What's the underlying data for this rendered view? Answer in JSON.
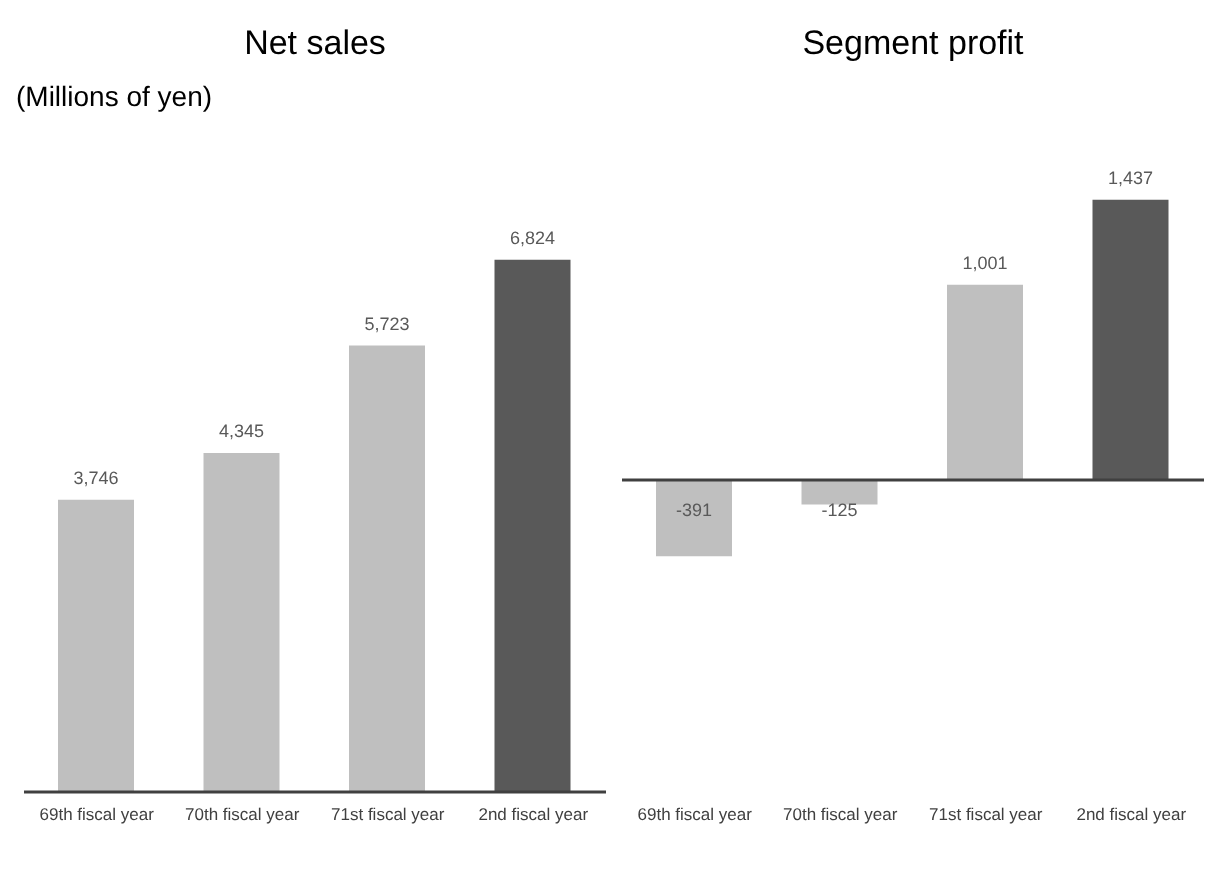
{
  "chart_data": [
    {
      "type": "bar",
      "title": "Net sales",
      "subtitle": "(Millions of yen)",
      "categories": [
        "69th fiscal year",
        "70th fiscal year",
        "71st fiscal year",
        "2nd fiscal year"
      ],
      "values": [
        3746,
        4345,
        5723,
        6824
      ],
      "value_labels": [
        "3,746",
        "4,345",
        "5,723",
        "6,824"
      ],
      "colors": [
        "#bfbfbf",
        "#bfbfbf",
        "#bfbfbf",
        "#595959"
      ],
      "grid": false,
      "legend": false
    },
    {
      "type": "bar",
      "title": "Segment profit",
      "categories": [
        "69th fiscal year",
        "70th fiscal year",
        "71st fiscal year",
        "2nd fiscal year"
      ],
      "values": [
        -391,
        -125,
        1001,
        1437
      ],
      "value_labels": [
        "-391",
        "-125",
        "1,001",
        "1,437"
      ],
      "colors": [
        "#bfbfbf",
        "#bfbfbf",
        "#bfbfbf",
        "#595959"
      ],
      "grid": false,
      "legend": false
    }
  ]
}
